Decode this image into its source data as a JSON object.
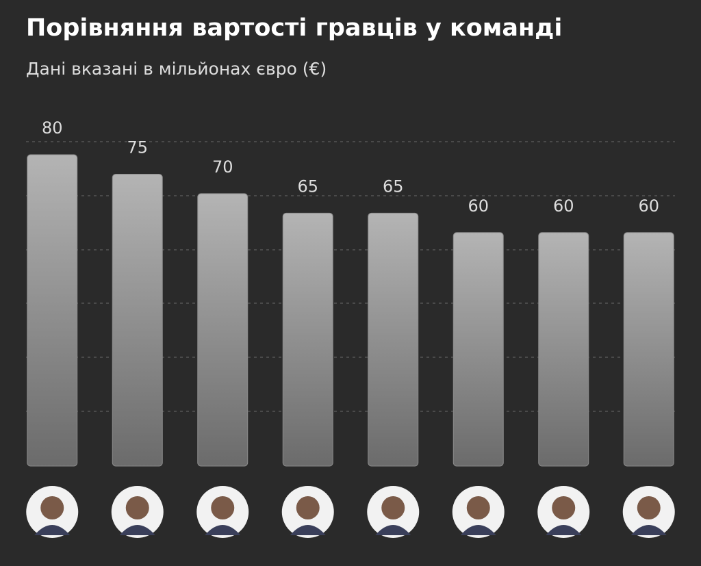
{
  "chart_data": {
    "type": "bar",
    "title": "Порівняння вартості гравців у команді",
    "subtitle": "Дані вказані в мільйонах євро (€)",
    "categories": [
      null,
      null,
      null,
      null,
      null,
      null,
      null,
      null
    ],
    "values": [
      80,
      75,
      70,
      65,
      65,
      60,
      60,
      60
    ],
    "color": "#9a9a9a",
    "ylim": [
      0,
      84
    ]
  }
}
